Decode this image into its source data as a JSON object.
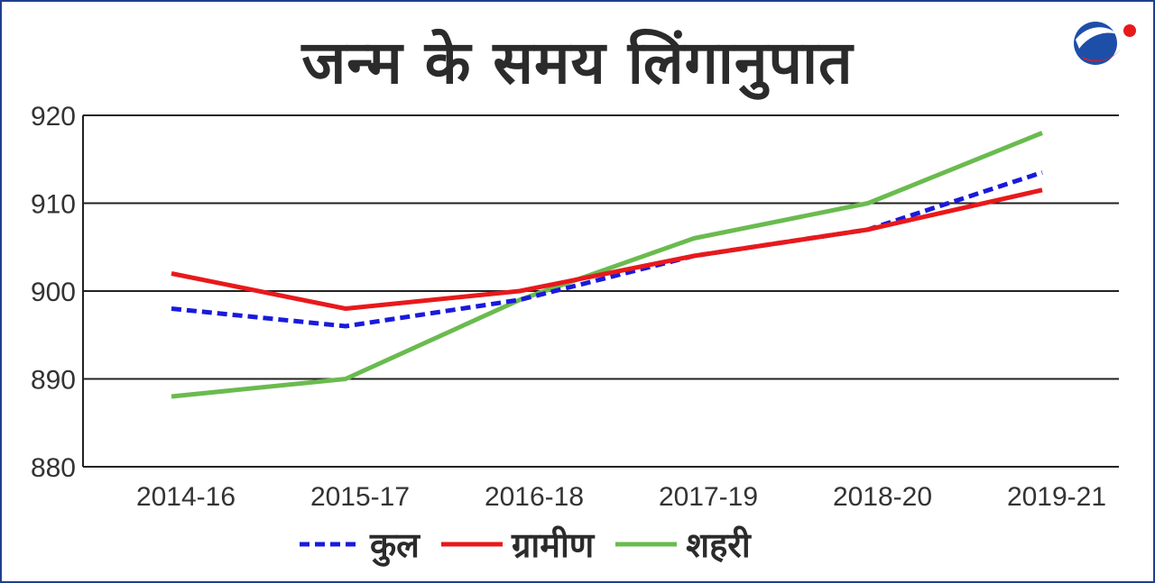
{
  "title": "जन्म के समय लिंगानुपात",
  "colors": {
    "total": "#1a1adc",
    "rural": "#e8191b",
    "urban": "#6abb4f",
    "border": "#1f3f8f"
  },
  "logo": {
    "name": "brand-logo"
  },
  "chart_data": {
    "type": "line",
    "title": "जन्म के समय लिंगानुपात",
    "categories": [
      "2014-16",
      "2015-17",
      "2016-18",
      "2017-19",
      "2018-20",
      "2019-21"
    ],
    "yticks": [
      "880",
      "890",
      "900",
      "910",
      "920"
    ],
    "ylim": [
      880,
      920
    ],
    "grid": true,
    "legend_position": "bottom",
    "series": [
      {
        "name": "कुल",
        "key": "total",
        "style": "dashed",
        "values": [
          898,
          896,
          899,
          904,
          907,
          913.5
        ]
      },
      {
        "name": "ग्रामीण",
        "key": "rural",
        "style": "solid",
        "values": [
          902,
          898,
          900,
          904,
          907,
          911.5
        ]
      },
      {
        "name": "शहरी",
        "key": "urban",
        "style": "solid",
        "values": [
          888,
          890,
          899,
          906,
          910,
          918
        ]
      }
    ]
  }
}
